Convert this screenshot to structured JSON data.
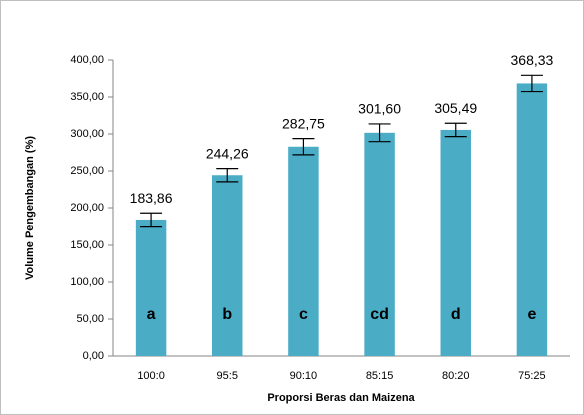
{
  "chart_data": {
    "type": "bar",
    "y_label": "Volume Pengembangan (%)",
    "x_label": "Proporsi Beras dan Maizena",
    "categories": [
      "100:0",
      "95:5",
      "90:10",
      "85:15",
      "80:20",
      "75:25"
    ],
    "values": [
      183.86,
      244.26,
      282.75,
      301.6,
      305.49,
      368.33
    ],
    "value_labels": [
      "183,86",
      "244,26",
      "282,75",
      "301,60",
      "305,49",
      "368,33"
    ],
    "errors": [
      9,
      9,
      11,
      12,
      9,
      11
    ],
    "letters": [
      "a",
      "b",
      "c",
      "cd",
      "d",
      "e"
    ],
    "color": "#4bacc6",
    "ylim": [
      0,
      400
    ],
    "yticks": [
      {
        "value": 0,
        "label": "0,00"
      },
      {
        "value": 50,
        "label": "50,00"
      },
      {
        "value": 100,
        "label": "100,00"
      },
      {
        "value": 150,
        "label": "150,00"
      },
      {
        "value": 200,
        "label": "200,00"
      },
      {
        "value": 250,
        "label": "250,00"
      },
      {
        "value": 300,
        "label": "300,00"
      },
      {
        "value": 350,
        "label": "350,00"
      },
      {
        "value": 400,
        "label": "400,00"
      }
    ],
    "grid": false
  }
}
